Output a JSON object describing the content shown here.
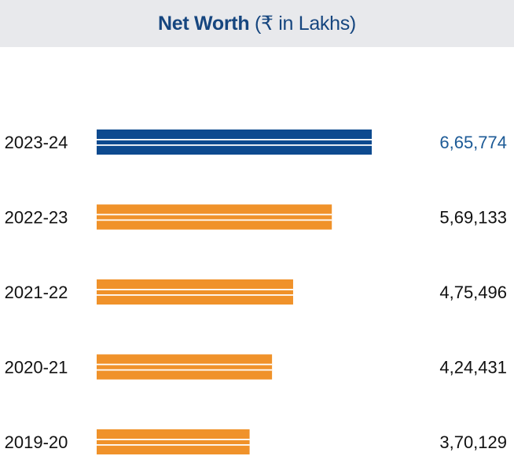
{
  "header": {
    "title_bold": "Net Worth",
    "title_rest": " (₹ in Lakhs)"
  },
  "chart_data": {
    "type": "bar",
    "orientation": "horizontal",
    "title": "Net Worth (₹ in Lakhs)",
    "categories": [
      "2023-24",
      "2022-23",
      "2021-22",
      "2020-21",
      "2019-20"
    ],
    "values": [
      665774,
      569133,
      475496,
      424431,
      370129
    ],
    "value_labels": [
      "6,65,774",
      "5,69,133",
      "4,75,496",
      "4,24,431",
      "3,70,129"
    ],
    "highlight_index": 0,
    "xlim": [
      0,
      1000000
    ],
    "grid": false,
    "legend": "none",
    "colors": {
      "highlight_bar": "#0d4a8f",
      "bar": "#f0922a",
      "highlight_label": "#1c5a96",
      "label": "#111111",
      "stripe": "#ffffff"
    }
  }
}
